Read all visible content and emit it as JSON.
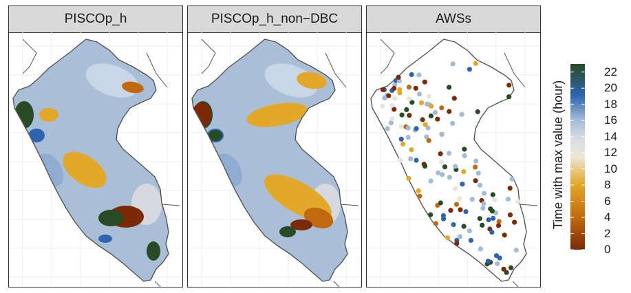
{
  "panels": [
    {
      "title": "PISCOp_h",
      "kind": "gridded"
    },
    {
      "title": "PISCOp_h_non−DBC",
      "kind": "gridded"
    },
    {
      "title": "AWSs",
      "kind": "stations"
    }
  ],
  "legend": {
    "title": "Time with max value (hour)",
    "ticks": [
      "22",
      "20",
      "18",
      "16",
      "14",
      "12",
      "10",
      "8",
      "6",
      "4",
      "2",
      "0"
    ],
    "range": [
      0,
      23
    ],
    "colors": {
      "h0": "#7a2a06",
      "h4": "#c0690f",
      "h8": "#e3a72a",
      "h12": "#e8e5df",
      "h16": "#a3bbd6",
      "h19": "#2f65b0",
      "h23": "#284a24"
    }
  },
  "colors": {
    "strip_bg": "#d9d9d9",
    "gridline": "#e6e6e6",
    "border": "#555555",
    "base_blue": "#a9bfd8"
  }
}
